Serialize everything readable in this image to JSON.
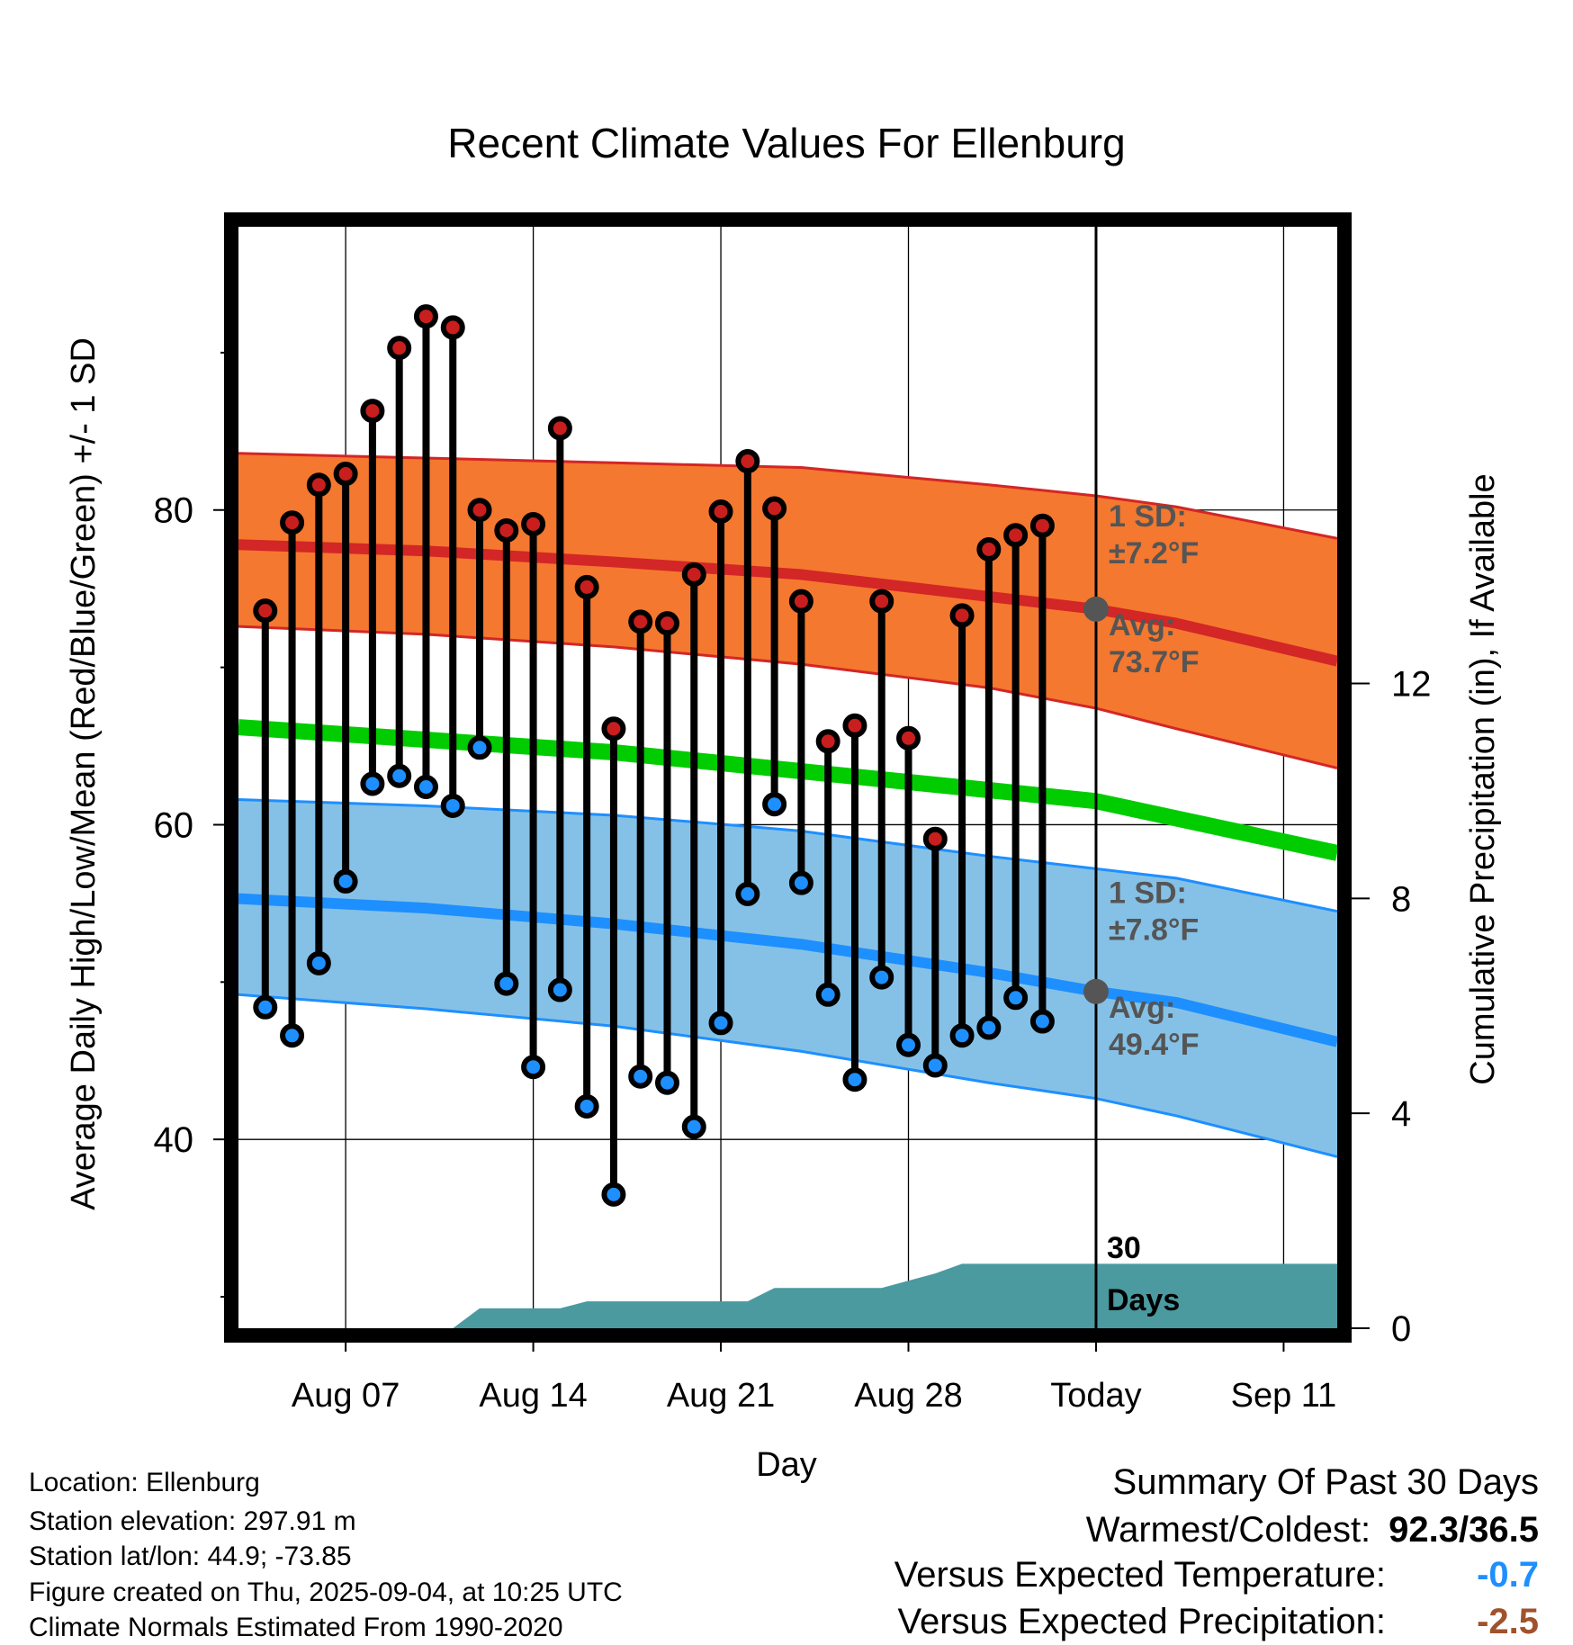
{
  "chart_data": {
    "type": "line",
    "title": "Recent Climate Values For Ellenburg",
    "xlabel": "Day",
    "ylabel": "Average Daily High/Low/Mean (Red/Blue/Green) +/- 1 SD",
    "y2label": "Cumulative Precipitation (in), If Available",
    "ylim": [
      28,
      98
    ],
    "y2lim": [
      0,
      20.5
    ],
    "yticks": [
      40,
      60,
      80
    ],
    "y2ticks": [
      0,
      4,
      8,
      12
    ],
    "xlim": [
      "2025-08-03",
      "2025-09-13"
    ],
    "xticks": [
      {
        "date": "2025-08-07",
        "label": "Aug 07"
      },
      {
        "date": "2025-08-14",
        "label": "Aug 14"
      },
      {
        "date": "2025-08-21",
        "label": "Aug 21"
      },
      {
        "date": "2025-08-28",
        "label": "Aug 28"
      },
      {
        "date": "2025-09-04",
        "label": "Today"
      },
      {
        "date": "2025-09-11",
        "label": "Sep 11"
      }
    ],
    "today": "2025-09-04",
    "grid": true,
    "observed": [
      {
        "date": "2025-08-04",
        "high": 73.6,
        "low": 48.4
      },
      {
        "date": "2025-08-05",
        "high": 79.2,
        "low": 46.6
      },
      {
        "date": "2025-08-06",
        "high": 81.6,
        "low": 51.2
      },
      {
        "date": "2025-08-07",
        "high": 82.3,
        "low": 56.4
      },
      {
        "date": "2025-08-08",
        "high": 86.3,
        "low": 62.6
      },
      {
        "date": "2025-08-09",
        "high": 90.3,
        "low": 63.1
      },
      {
        "date": "2025-08-10",
        "high": 92.3,
        "low": 62.4
      },
      {
        "date": "2025-08-11",
        "high": 91.6,
        "low": 61.2
      },
      {
        "date": "2025-08-12",
        "high": 80.0,
        "low": 64.9
      },
      {
        "date": "2025-08-13",
        "high": 78.7,
        "low": 49.9
      },
      {
        "date": "2025-08-14",
        "high": 79.1,
        "low": 44.6
      },
      {
        "date": "2025-08-15",
        "high": 85.2,
        "low": 49.5
      },
      {
        "date": "2025-08-16",
        "high": 75.1,
        "low": 42.1
      },
      {
        "date": "2025-08-17",
        "high": 66.1,
        "low": 36.5
      },
      {
        "date": "2025-08-18",
        "high": 72.9,
        "low": 44.0
      },
      {
        "date": "2025-08-19",
        "high": 72.8,
        "low": 43.6
      },
      {
        "date": "2025-08-20",
        "high": 75.9,
        "low": 40.8
      },
      {
        "date": "2025-08-21",
        "high": 79.9,
        "low": 47.4
      },
      {
        "date": "2025-08-22",
        "high": 83.1,
        "low": 55.6
      },
      {
        "date": "2025-08-23",
        "high": 80.1,
        "low": 61.3
      },
      {
        "date": "2025-08-24",
        "high": 74.2,
        "low": 56.3
      },
      {
        "date": "2025-08-25",
        "high": 65.3,
        "low": 49.2
      },
      {
        "date": "2025-08-26",
        "high": 66.3,
        "low": 43.8
      },
      {
        "date": "2025-08-27",
        "high": 74.2,
        "low": 50.3
      },
      {
        "date": "2025-08-28",
        "high": 65.5,
        "low": 46.0
      },
      {
        "date": "2025-08-29",
        "high": 59.1,
        "low": 44.7
      },
      {
        "date": "2025-08-30",
        "high": 73.3,
        "low": 46.6
      },
      {
        "date": "2025-08-31",
        "high": 77.5,
        "low": 47.1
      },
      {
        "date": "2025-09-01",
        "high": 78.4,
        "low": 49.0
      },
      {
        "date": "2025-09-02",
        "high": 79.0,
        "low": 47.5
      }
    ],
    "normal_high": [
      {
        "date": "2025-08-03",
        "mean": 77.8,
        "upper": 83.6,
        "lower": 72.6
      },
      {
        "date": "2025-08-10",
        "mean": 77.4,
        "upper": 83.3,
        "lower": 72.1
      },
      {
        "date": "2025-08-17",
        "mean": 76.7,
        "upper": 83.0,
        "lower": 71.3
      },
      {
        "date": "2025-08-24",
        "mean": 75.9,
        "upper": 82.7,
        "lower": 70.2
      },
      {
        "date": "2025-08-31",
        "mean": 74.5,
        "upper": 81.6,
        "lower": 68.7
      },
      {
        "date": "2025-09-04",
        "mean": 73.7,
        "upper": 80.9,
        "lower": 67.4
      },
      {
        "date": "2025-09-07",
        "mean": 72.8,
        "upper": 80.2,
        "lower": 66.1
      },
      {
        "date": "2025-09-13",
        "mean": 70.4,
        "upper": 78.2,
        "lower": 63.6
      }
    ],
    "normal_low": [
      {
        "date": "2025-08-03",
        "mean": 55.3,
        "upper": 61.6,
        "lower": 49.2
      },
      {
        "date": "2025-08-10",
        "mean": 54.7,
        "upper": 61.2,
        "lower": 48.3
      },
      {
        "date": "2025-08-17",
        "mean": 53.7,
        "upper": 60.6,
        "lower": 47.2
      },
      {
        "date": "2025-08-24",
        "mean": 52.4,
        "upper": 59.6,
        "lower": 45.6
      },
      {
        "date": "2025-08-31",
        "mean": 50.6,
        "upper": 58.0,
        "lower": 43.6
      },
      {
        "date": "2025-09-04",
        "mean": 49.4,
        "upper": 57.2,
        "lower": 42.6
      },
      {
        "date": "2025-09-07",
        "mean": 48.7,
        "upper": 56.6,
        "lower": 41.5
      },
      {
        "date": "2025-09-13",
        "mean": 46.2,
        "upper": 54.5,
        "lower": 38.9
      }
    ],
    "normal_mean": [
      {
        "date": "2025-08-03",
        "value": 66.2
      },
      {
        "date": "2025-08-17",
        "value": 64.6
      },
      {
        "date": "2025-08-31",
        "value": 62.2
      },
      {
        "date": "2025-09-04",
        "value": 61.5
      },
      {
        "date": "2025-09-13",
        "value": 58.2
      }
    ],
    "precip_cumulative": [
      {
        "date": "2025-08-11",
        "value": 0.0
      },
      {
        "date": "2025-08-12",
        "value": 0.37
      },
      {
        "date": "2025-08-15",
        "value": 0.37
      },
      {
        "date": "2025-08-16",
        "value": 0.5
      },
      {
        "date": "2025-08-22",
        "value": 0.5
      },
      {
        "date": "2025-08-23",
        "value": 0.75
      },
      {
        "date": "2025-08-27",
        "value": 0.75
      },
      {
        "date": "2025-08-29",
        "value": 1.02
      },
      {
        "date": "2025-08-30",
        "value": 1.2
      },
      {
        "date": "2025-09-13",
        "value": 1.2
      }
    ],
    "annotations": {
      "high_sd_label": "1 SD:",
      "high_sd_value": "±7.2°F",
      "high_avg_label": "Avg:",
      "high_avg_value": "73.7°F",
      "low_sd_label": "1 SD:",
      "low_sd_value": "±7.8°F",
      "low_avg_label": "Avg:",
      "low_avg_value": "49.4°F",
      "days_line1": "30",
      "days_line2": "Days"
    },
    "colors": {
      "high_band": "#f4782f",
      "high_line": "#d32626",
      "low_band": "#85c1e6",
      "low_line": "#1e8fff",
      "mean_line": "#00cc00",
      "precip": "#4a9aa0",
      "marker_high": "#c81e1e",
      "marker_low": "#1e8fff",
      "annotation_text": "#555555",
      "today_dot": "#555555"
    }
  },
  "meta": {
    "location": "Location: Ellenburg",
    "elevation": "Station elevation: 297.91 m",
    "latlon": "Station lat/lon: 44.9; -73.85",
    "created": "Figure created on Thu, 2025-09-04, at 10:25 UTC",
    "normals": "Climate Normals Estimated From 1990-2020"
  },
  "summary": {
    "title": "Summary Of Past 30 Days",
    "warm_cold_label": "Warmest/Coldest:",
    "warm_cold_value": "92.3/36.5",
    "temp_label": "Versus Expected Temperature:",
    "temp_value": "-0.7",
    "temp_color": "#1e8fff",
    "precip_label": "Versus Expected Precipitation:",
    "precip_value": "-2.5",
    "precip_color": "#a0522d"
  }
}
